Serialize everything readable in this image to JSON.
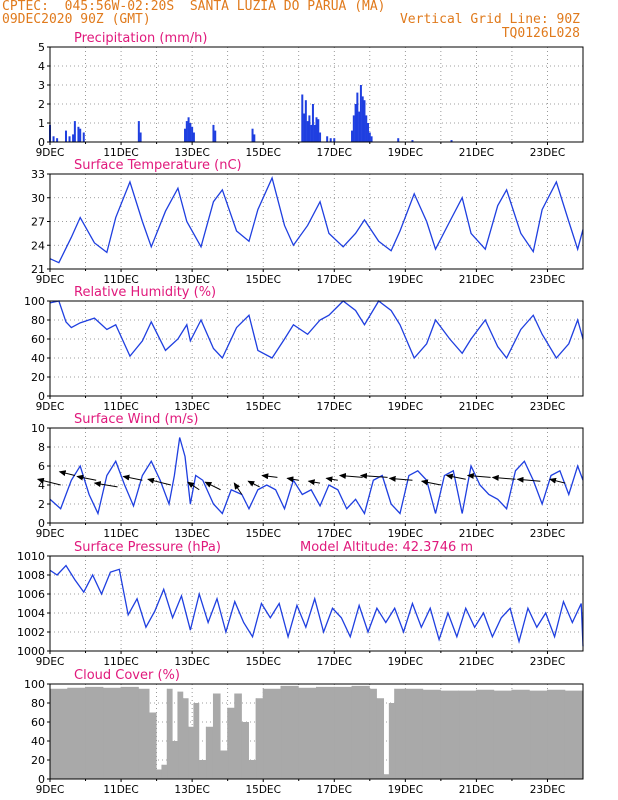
{
  "header": {
    "line1": "CPTEC:  045:56W-02:20S  SANTA LUZIA DO PARUA (MA)",
    "line2_left": "09DEC2020 90Z (GMT)",
    "line2_right": "Vertical Grid Line: 90Z",
    "line3_right": "TQ0126L028"
  },
  "colors": {
    "header": "#e07a1c",
    "title": "#e0197c",
    "line": "#1f3fe0",
    "cloud": "#a9a9a9",
    "arrow": "#000000"
  },
  "x_ticks": [
    "9DEC",
    "11DEC",
    "13DEC",
    "15DEC",
    "17DEC",
    "19DEC",
    "21DEC",
    "23DEC"
  ],
  "x_range_days": [
    9,
    24
  ],
  "chart_data": [
    {
      "type": "bar",
      "title": "Precipitation (mm/h)",
      "ylim": [
        0,
        5
      ],
      "yticks": [
        "0",
        "1",
        "2",
        "3",
        "4",
        "5"
      ],
      "x": [
        9.0,
        9.1,
        9.2,
        9.45,
        9.55,
        9.65,
        9.7,
        9.8,
        9.85,
        9.95,
        11.5,
        11.55,
        12.8,
        12.85,
        12.9,
        12.95,
        13.0,
        13.05,
        13.6,
        13.65,
        14.7,
        14.75,
        16.1,
        16.15,
        16.2,
        16.25,
        16.3,
        16.35,
        16.4,
        16.45,
        16.5,
        16.55,
        16.6,
        16.8,
        16.9,
        17.0,
        17.5,
        17.55,
        17.6,
        17.65,
        17.7,
        17.75,
        17.8,
        17.85,
        17.9,
        17.95,
        18.0,
        18.05,
        18.8,
        19.2,
        20.3
      ],
      "values": [
        0.9,
        0.3,
        0.2,
        0.6,
        0.3,
        0.4,
        1.1,
        0.8,
        0.7,
        0.5,
        1.1,
        0.5,
        0.7,
        1.1,
        1.3,
        1.0,
        0.8,
        0.5,
        0.9,
        0.6,
        0.7,
        0.4,
        2.5,
        1.5,
        2.2,
        1.1,
        1.4,
        0.9,
        2.0,
        0.9,
        1.3,
        1.2,
        0.5,
        0.3,
        0.2,
        0.2,
        0.6,
        1.4,
        2.0,
        2.6,
        1.6,
        3.0,
        2.4,
        2.2,
        1.4,
        1.0,
        0.5,
        0.3,
        0.2,
        0.1,
        0.1
      ]
    },
    {
      "type": "line",
      "title": "Surface Temperature (nC)",
      "ylim": [
        21,
        33
      ],
      "yticks": [
        "21",
        "24",
        "27",
        "30",
        "33"
      ],
      "x": [
        9.0,
        9.25,
        9.6,
        9.85,
        10.25,
        10.6,
        10.85,
        11.25,
        11.6,
        11.85,
        12.25,
        12.6,
        12.85,
        13.25,
        13.6,
        13.85,
        14.25,
        14.6,
        14.85,
        15.25,
        15.6,
        15.85,
        16.25,
        16.6,
        16.85,
        17.25,
        17.6,
        17.85,
        18.25,
        18.6,
        18.85,
        19.25,
        19.6,
        19.85,
        20.25,
        20.6,
        20.85,
        21.25,
        21.6,
        21.85,
        22.25,
        22.6,
        22.85,
        23.25,
        23.6,
        23.85,
        24.0
      ],
      "values": [
        22.3,
        21.8,
        25.0,
        27.5,
        24.3,
        23.1,
        27.5,
        32.0,
        27.0,
        23.8,
        28.3,
        31.2,
        27.0,
        23.8,
        29.5,
        31.0,
        25.8,
        24.5,
        28.5,
        32.5,
        26.5,
        24.0,
        26.5,
        29.5,
        25.5,
        23.8,
        25.5,
        27.2,
        24.5,
        23.3,
        25.8,
        30.5,
        27.0,
        23.5,
        27.0,
        30.0,
        25.5,
        23.5,
        29.0,
        31.0,
        25.5,
        23.2,
        28.5,
        32.0,
        27.0,
        23.5,
        26.0
      ]
    },
    {
      "type": "line",
      "title": "Relative Humidity (%)",
      "ylim": [
        0,
        100
      ],
      "yticks": [
        "0",
        "20",
        "40",
        "60",
        "80",
        "100"
      ],
      "x": [
        9.0,
        9.25,
        9.45,
        9.6,
        9.85,
        10.25,
        10.6,
        10.85,
        11.25,
        11.6,
        11.85,
        12.25,
        12.6,
        12.85,
        12.95,
        13.25,
        13.6,
        13.85,
        14.25,
        14.6,
        14.85,
        15.25,
        15.6,
        15.85,
        16.25,
        16.6,
        16.85,
        17.25,
        17.6,
        17.85,
        18.25,
        18.6,
        18.85,
        19.25,
        19.6,
        19.85,
        20.25,
        20.6,
        20.85,
        21.25,
        21.6,
        21.85,
        22.25,
        22.6,
        22.85,
        23.25,
        23.6,
        23.85,
        24.0
      ],
      "values": [
        98,
        100,
        78,
        72,
        77,
        82,
        70,
        75,
        42,
        58,
        78,
        48,
        60,
        75,
        58,
        80,
        50,
        40,
        72,
        85,
        48,
        40,
        60,
        75,
        65,
        80,
        85,
        100,
        90,
        75,
        100,
        90,
        75,
        40,
        55,
        80,
        60,
        45,
        60,
        80,
        52,
        40,
        70,
        85,
        65,
        40,
        55,
        80,
        60
      ]
    },
    {
      "type": "line",
      "title": "Surface Wind (m/s)",
      "ylim": [
        0,
        10
      ],
      "yticks": [
        "0",
        "2",
        "4",
        "6",
        "8",
        "10"
      ],
      "x": [
        9.0,
        9.3,
        9.6,
        9.85,
        10.1,
        10.35,
        10.6,
        10.85,
        11.1,
        11.35,
        11.6,
        11.85,
        12.1,
        12.35,
        12.5,
        12.65,
        12.8,
        12.95,
        13.1,
        13.3,
        13.6,
        13.85,
        14.1,
        14.4,
        14.6,
        14.85,
        15.1,
        15.35,
        15.6,
        15.85,
        16.1,
        16.35,
        16.6,
        16.85,
        17.1,
        17.35,
        17.6,
        17.85,
        18.1,
        18.35,
        18.6,
        18.85,
        19.1,
        19.35,
        19.6,
        19.85,
        20.1,
        20.35,
        20.6,
        20.85,
        21.1,
        21.35,
        21.6,
        21.85,
        22.1,
        22.35,
        22.6,
        22.85,
        23.1,
        23.35,
        23.6,
        23.85,
        24.0
      ],
      "values": [
        2.5,
        1.5,
        4.5,
        6.0,
        3.0,
        1.0,
        5.0,
        6.5,
        4.0,
        1.8,
        5.0,
        6.5,
        4.5,
        2.0,
        5.0,
        9.0,
        7.0,
        2.0,
        5.0,
        4.5,
        2.0,
        1.0,
        3.5,
        3.0,
        1.5,
        3.5,
        4.0,
        3.5,
        1.5,
        4.5,
        3.0,
        3.5,
        1.8,
        4.0,
        3.5,
        1.5,
        2.5,
        1.0,
        4.5,
        5.0,
        2.0,
        1.0,
        5.0,
        5.5,
        4.5,
        1.0,
        5.0,
        5.5,
        1.0,
        6.0,
        4.0,
        3.0,
        2.5,
        1.5,
        5.5,
        6.5,
        4.5,
        2.0,
        5.0,
        5.5,
        3.0,
        6.0,
        4.5
      ],
      "vectors": {
        "x": [
          9.3,
          9.7,
          10.3,
          10.9,
          11.6,
          12.4,
          13.2,
          13.8,
          14.4,
          14.9,
          15.4,
          16.0,
          16.6,
          17.1,
          17.8,
          18.5,
          19.2,
          20.0,
          20.7,
          21.4,
          22.1,
          22.8,
          23.5
        ],
        "y": [
          4.0,
          5.0,
          4.5,
          3.8,
          4.5,
          4.0,
          3.5,
          3.5,
          3.0,
          3.8,
          4.8,
          4.5,
          4.2,
          4.5,
          4.8,
          4.8,
          4.5,
          4.0,
          4.6,
          4.8,
          4.6,
          4.4,
          4.2
        ],
        "u": [
          -0.6,
          -0.4,
          -0.5,
          -0.6,
          -0.5,
          -0.6,
          -0.3,
          -0.4,
          -0.2,
          -0.3,
          -0.4,
          -0.3,
          -0.3,
          -0.3,
          -0.6,
          -0.7,
          -0.6,
          -0.5,
          -0.5,
          -0.6,
          -0.6,
          -0.6,
          -0.4
        ],
        "v": [
          0.15,
          0.1,
          0.1,
          0.1,
          0.1,
          0.15,
          0.2,
          0.2,
          0.3,
          0.15,
          0.05,
          0.05,
          0.05,
          0.05,
          0.05,
          0.05,
          0.05,
          0.1,
          0.1,
          0.05,
          0.05,
          0.05,
          0.1
        ]
      }
    },
    {
      "type": "line",
      "title": "Surface Pressure (hPa)",
      "subtitle": "Model Altitude: 42.3746 m",
      "ylim": [
        1000,
        1010
      ],
      "yticks": [
        "1000",
        "1002",
        "1004",
        "1006",
        "1008",
        "1010"
      ],
      "x": [
        9.0,
        9.2,
        9.45,
        9.7,
        9.95,
        10.2,
        10.45,
        10.7,
        10.95,
        11.2,
        11.45,
        11.7,
        11.95,
        12.2,
        12.45,
        12.7,
        12.95,
        13.2,
        13.45,
        13.7,
        13.95,
        14.2,
        14.45,
        14.7,
        14.95,
        15.2,
        15.45,
        15.7,
        15.95,
        16.2,
        16.45,
        16.7,
        16.95,
        17.2,
        17.45,
        17.7,
        17.95,
        18.2,
        18.45,
        18.7,
        18.95,
        19.2,
        19.45,
        19.7,
        19.95,
        20.2,
        20.45,
        20.7,
        20.95,
        21.2,
        21.45,
        21.7,
        21.95,
        22.2,
        22.45,
        22.7,
        22.95,
        23.2,
        23.45,
        23.7,
        23.95,
        24.0
      ],
      "values": [
        1008.5,
        1008.0,
        1009.0,
        1007.5,
        1006.2,
        1008.0,
        1006.0,
        1008.3,
        1008.6,
        1003.8,
        1005.5,
        1002.5,
        1004.2,
        1006.5,
        1003.5,
        1005.8,
        1002.2,
        1006.0,
        1003.0,
        1005.5,
        1002.0,
        1005.2,
        1003.0,
        1001.5,
        1005.0,
        1003.5,
        1005.0,
        1001.5,
        1004.8,
        1002.5,
        1005.5,
        1002.0,
        1004.5,
        1003.5,
        1001.5,
        1004.8,
        1002.0,
        1004.5,
        1003.0,
        1004.5,
        1002.0,
        1005.0,
        1002.5,
        1004.5,
        1001.2,
        1004.0,
        1001.5,
        1004.5,
        1002.5,
        1004.0,
        1001.5,
        1003.5,
        1004.5,
        1001.0,
        1004.5,
        1002.5,
        1004.0,
        1001.5,
        1005.2,
        1003.0,
        1005.0,
        1000.5
      ]
    },
    {
      "type": "bar",
      "title": "Cloud Cover (%)",
      "ylim": [
        0,
        100
      ],
      "yticks": [
        "0",
        "20",
        "40",
        "60",
        "80",
        "100"
      ],
      "x": [
        9.0,
        9.5,
        10.0,
        10.5,
        11.0,
        11.5,
        11.8,
        12.0,
        12.15,
        12.3,
        12.45,
        12.6,
        12.75,
        12.9,
        13.05,
        13.2,
        13.4,
        13.6,
        13.8,
        14.0,
        14.2,
        14.4,
        14.6,
        14.8,
        15.0,
        15.5,
        16.0,
        16.5,
        17.0,
        17.5,
        18.0,
        18.2,
        18.4,
        18.55,
        18.7,
        19.0,
        19.5,
        20.0,
        20.5,
        21.0,
        21.5,
        22.0,
        22.5,
        23.0,
        23.5,
        24.0
      ],
      "values": [
        95,
        96,
        97,
        96,
        97,
        95,
        70,
        10,
        15,
        95,
        40,
        92,
        85,
        55,
        80,
        20,
        55,
        90,
        30,
        75,
        90,
        60,
        20,
        85,
        95,
        98,
        96,
        97,
        97,
        98,
        95,
        85,
        5,
        80,
        95,
        95,
        94,
        93,
        93,
        94,
        93,
        94,
        93,
        94,
        93,
        92
      ]
    }
  ]
}
